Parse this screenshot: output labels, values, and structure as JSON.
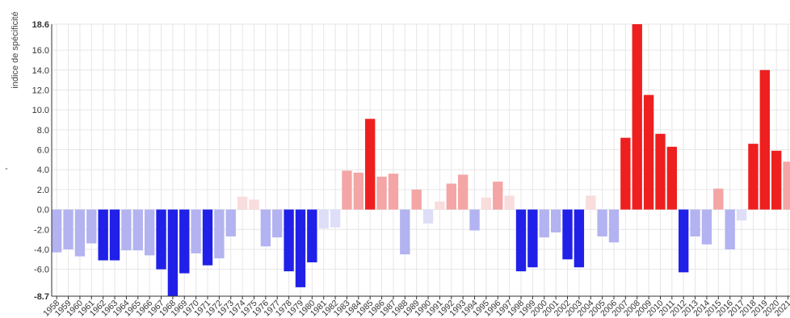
{
  "chart_data": {
    "type": "bar",
    "ylabel": "indice de spécificité",
    "side_mark": "-",
    "ylim": [
      -8.7,
      18.6
    ],
    "yticks": [
      {
        "value": 18.6,
        "label": "18.6",
        "bold": true
      },
      {
        "value": 16,
        "label": "16.0",
        "bold": false
      },
      {
        "value": 14,
        "label": "14.0",
        "bold": false
      },
      {
        "value": 12,
        "label": "12.0",
        "bold": false
      },
      {
        "value": 10,
        "label": "10.0",
        "bold": false
      },
      {
        "value": 8,
        "label": "8.0",
        "bold": false
      },
      {
        "value": 6,
        "label": "6.0",
        "bold": false
      },
      {
        "value": 4,
        "label": "4.0",
        "bold": false
      },
      {
        "value": 2,
        "label": "2.0",
        "bold": false
      },
      {
        "value": 0,
        "label": "0.0",
        "bold": false
      },
      {
        "value": -2,
        "label": "-2.0",
        "bold": false
      },
      {
        "value": -4,
        "label": "-4.0",
        "bold": false
      },
      {
        "value": -6,
        "label": "-6.0",
        "bold": false
      },
      {
        "value": -8.7,
        "label": "-8.7",
        "bold": true
      }
    ],
    "grid": true,
    "categories": [
      "1958",
      "1959",
      "1960",
      "1961",
      "1962",
      "1963",
      "1964",
      "1965",
      "1966",
      "1967",
      "1968",
      "1969",
      "1970",
      "1971",
      "1972",
      "1973",
      "1974",
      "1975",
      "1976",
      "1977",
      "1978",
      "1979",
      "1980",
      "1981",
      "1982",
      "1983",
      "1984",
      "1985",
      "1986",
      "1987",
      "1988",
      "1989",
      "1990",
      "1991",
      "1992",
      "1993",
      "1994",
      "1995",
      "1996",
      "1997",
      "1998",
      "1999",
      "2000",
      "2001",
      "2002",
      "2003",
      "2004",
      "2005",
      "2006",
      "2007",
      "2008",
      "2009",
      "2010",
      "2011",
      "2012",
      "2013",
      "2014",
      "2015",
      "2016",
      "2017",
      "2018",
      "2019",
      "2020",
      "2021"
    ],
    "values": [
      -4.3,
      -4.0,
      -4.7,
      -3.4,
      -5.1,
      -5.1,
      -4.1,
      -4.1,
      -4.6,
      -6.0,
      -8.7,
      -6.4,
      -4.4,
      -5.6,
      -4.9,
      -2.7,
      1.3,
      1.0,
      -3.7,
      -2.8,
      -6.2,
      -7.8,
      -5.3,
      -1.9,
      -1.8,
      3.9,
      3.7,
      9.1,
      3.3,
      3.6,
      -4.5,
      2.0,
      -1.4,
      0.8,
      2.6,
      3.5,
      -2.1,
      1.2,
      2.8,
      1.4,
      -6.2,
      -5.8,
      -2.8,
      -2.3,
      -5.0,
      -5.8,
      1.4,
      -2.7,
      -3.3,
      7.2,
      18.6,
      11.5,
      7.6,
      6.3,
      -6.3,
      -2.7,
      -3.5,
      2.1,
      -4.0,
      -1.1,
      6.6,
      14.0,
      5.9,
      4.8
    ],
    "colors": {
      "pos_strong": "#ee1f1f",
      "pos_mid": "#f4a5a5",
      "pos_weak": "#f9dcdc",
      "neg_strong": "#2020e8",
      "neg_mid": "#b3b3f1",
      "neg_weak": "#dedef8",
      "grid": "#e6e6e6",
      "axis": "#333333"
    }
  }
}
